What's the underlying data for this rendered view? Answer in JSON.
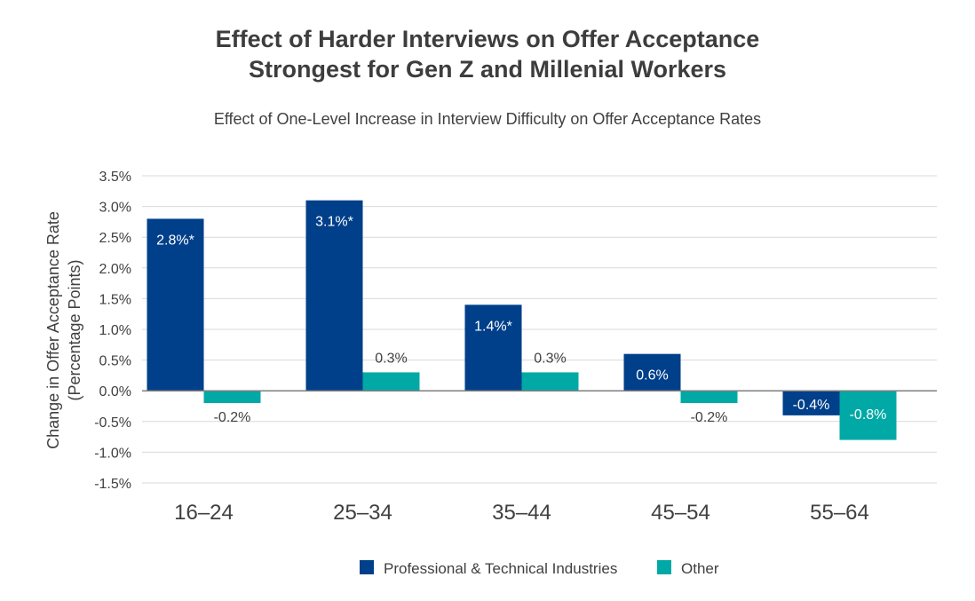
{
  "chart_data": {
    "type": "bar",
    "title_line1": "Effect of Harder Interviews on Offer Acceptance",
    "title_line2": "Strongest for Gen Z and Millenial Workers",
    "subtitle": "Effect of One-Level Increase in Interview Difficulty on Offer Acceptance Rates",
    "ylabel_line1": "Change in Offer Acceptance Rate",
    "ylabel_line2": "(Percentage Points)",
    "xlabel": "",
    "ylim": [
      -1.5,
      3.5
    ],
    "yticks": [
      3.5,
      3.0,
      2.5,
      2.0,
      1.5,
      1.0,
      0.5,
      0.0,
      -0.5,
      -1.0,
      -1.5
    ],
    "ytick_labels": [
      "3.5%",
      "3.0%",
      "2.5%",
      "2.0%",
      "1.5%",
      "1.0%",
      "0.5%",
      "0.0%",
      "-0.5%",
      "-1.0%",
      "-1.5%"
    ],
    "categories": [
      "16–24",
      "25–34",
      "35–44",
      "45–54",
      "55–64"
    ],
    "series": [
      {
        "name": "Professional & Technical Industries",
        "color": "#003f8a",
        "values": [
          2.8,
          3.1,
          1.4,
          0.6,
          -0.4
        ],
        "labels": [
          "2.8%*",
          "3.1%*",
          "1.4%*",
          "0.6%",
          "-0.4%"
        ]
      },
      {
        "name": "Other",
        "color": "#00a9a5",
        "values": [
          -0.2,
          0.3,
          0.3,
          -0.2,
          -0.8
        ],
        "labels": [
          "-0.2%",
          "0.3%",
          "0.3%",
          "-0.2%",
          "-0.8%"
        ]
      }
    ],
    "grid": true,
    "legend_position": "bottom"
  }
}
